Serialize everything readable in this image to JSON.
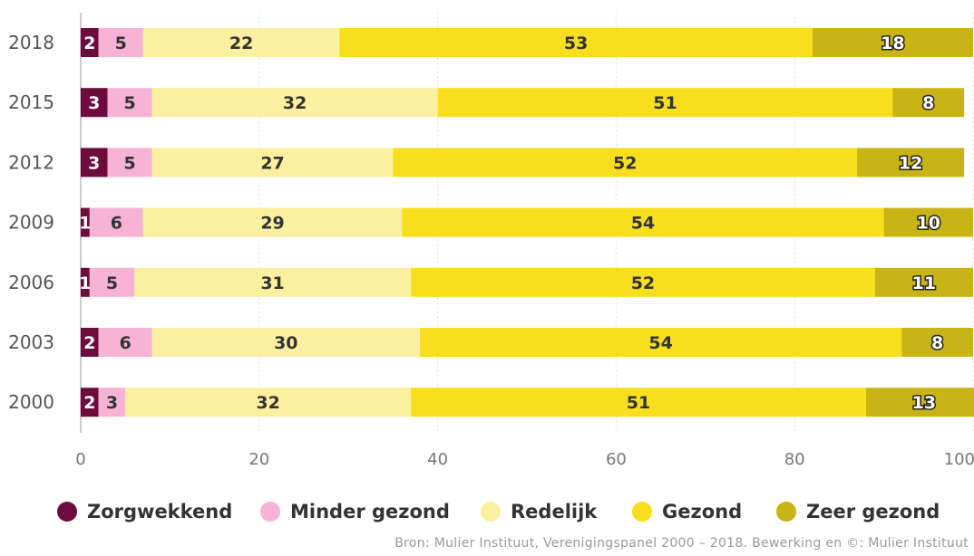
{
  "chart_data": {
    "type": "bar",
    "orientation": "horizontal",
    "stacked": true,
    "categories": [
      "2018",
      "2015",
      "2012",
      "2009",
      "2006",
      "2003",
      "2000"
    ],
    "series": [
      {
        "name": "Zorgwekkend",
        "color": "#6e0b3d",
        "values": [
          2,
          3,
          3,
          1,
          1,
          2,
          2
        ]
      },
      {
        "name": "Minder gezond",
        "color": "#f7b3d5",
        "values": [
          5,
          5,
          5,
          6,
          5,
          6,
          3
        ]
      },
      {
        "name": "Redelijk",
        "color": "#fbf0a0",
        "values": [
          22,
          32,
          27,
          29,
          31,
          30,
          32
        ]
      },
      {
        "name": "Gezond",
        "color": "#f7df1e",
        "values": [
          53,
          51,
          52,
          54,
          52,
          54,
          51
        ]
      },
      {
        "name": "Zeer gezond",
        "color": "#c8b414",
        "values": [
          18,
          8,
          12,
          10,
          11,
          8,
          13
        ]
      }
    ],
    "xlim": [
      0,
      100
    ],
    "xticks": [
      "0",
      "20",
      "40",
      "60",
      "80",
      "100"
    ],
    "grid": true,
    "legend_position": "bottom"
  },
  "source": "Bron: Mulier Instituut, Verenigingspanel 2000 – 2018. Bewerking en ©: Mulier Instituut"
}
